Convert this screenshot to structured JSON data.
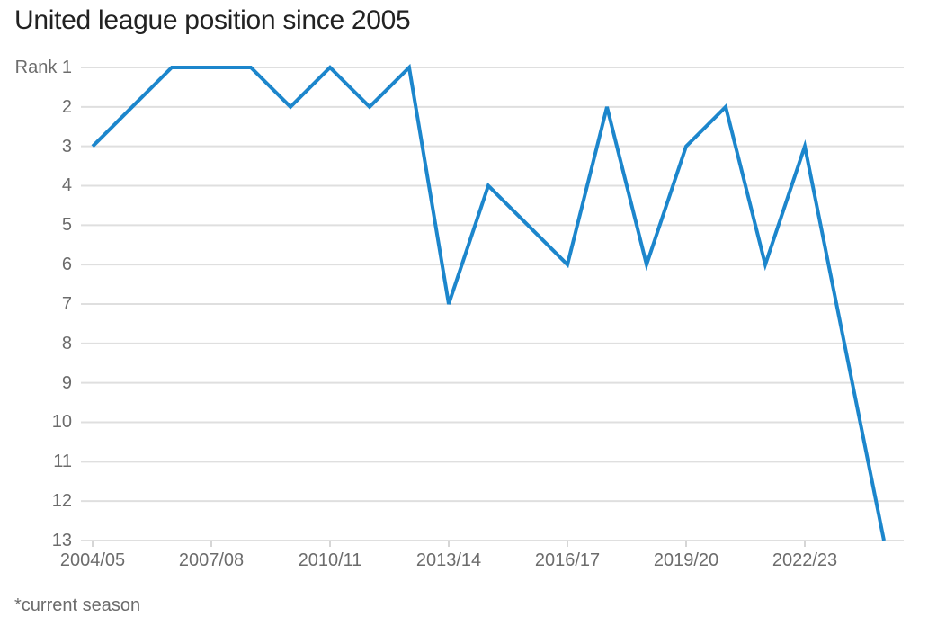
{
  "title": "United league position since 2005",
  "footnote": "*current season",
  "colors": {
    "line": "#1c86cc",
    "grid": "#dfdfdf",
    "axis_tick": "#c9c9c9",
    "axis_text": "#6c6c6c",
    "title_text": "#222222",
    "background": "#ffffff"
  },
  "chart_data": {
    "type": "line",
    "title": "United league position since 2005",
    "series_name": "United league position",
    "x": [
      "2004/05",
      "2005/06",
      "2006/07",
      "2007/08",
      "2008/09",
      "2009/10",
      "2010/11",
      "2011/12",
      "2012/13",
      "2013/14",
      "2014/15",
      "2015/16",
      "2016/17",
      "2017/18",
      "2018/19",
      "2019/20",
      "2020/21",
      "2021/22",
      "2022/23",
      "2023/24",
      "2024/25"
    ],
    "values": [
      3,
      2,
      1,
      1,
      1,
      2,
      1,
      2,
      1,
      7,
      4,
      5,
      6,
      2,
      6,
      3,
      2,
      6,
      3,
      8,
      13
    ],
    "xlabel": "",
    "ylabel": "Rank",
    "ylim": [
      1,
      13
    ],
    "y_axis_inverted": true,
    "ytick_labels": [
      "Rank 1",
      "2",
      "3",
      "4",
      "5",
      "6",
      "7",
      "8",
      "9",
      "10",
      "11",
      "12",
      "13"
    ],
    "xtick_labels": [
      "2004/05",
      "2007/08",
      "2010/11",
      "2013/14",
      "2016/17",
      "2019/20",
      "2022/23"
    ],
    "grid": "horizontal",
    "legend": "none",
    "annotation": "*current season"
  }
}
